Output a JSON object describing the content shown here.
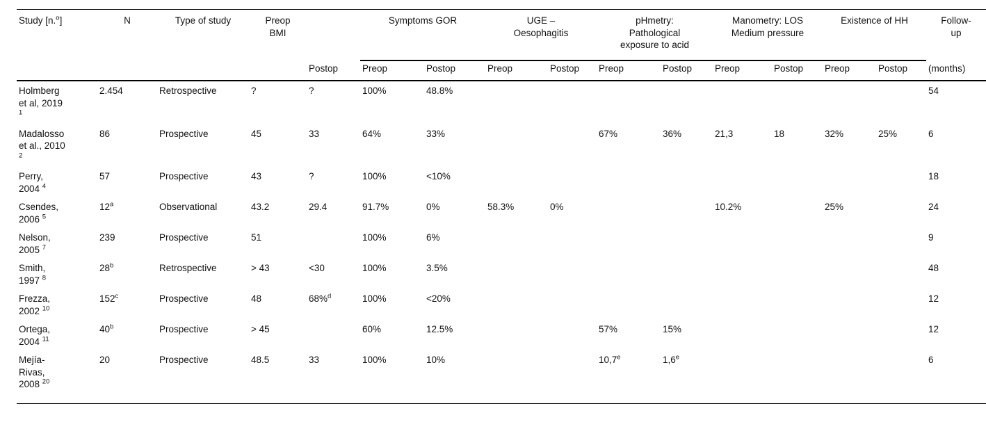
{
  "page": {
    "background": "#ffffff",
    "text_color": "#111111",
    "rule_color": "#000000"
  },
  "table": {
    "headers": {
      "study": "Study [n.^{o}]",
      "n": "N",
      "type_of_study": "Type of study",
      "preop_bmi": [
        "Preop",
        "BMI"
      ],
      "groups": [
        {
          "id": "symptoms-gor",
          "label": [
            "Symptoms GOR"
          ]
        },
        {
          "id": "uge-oesophagitis",
          "label": [
            "UGE –",
            "Oesophagitis"
          ]
        },
        {
          "id": "phmetry",
          "label": [
            "pHmetry:",
            "Pathological",
            "exposure to acid"
          ]
        },
        {
          "id": "manometry",
          "label": [
            "Manometry: LOS",
            "Medium pressure"
          ]
        },
        {
          "id": "existence-of-hh",
          "label": [
            "Existence of HH"
          ]
        }
      ],
      "followup": [
        "Follow-",
        "up"
      ],
      "sub": {
        "postop_bmi": "Postop",
        "preop": "Preop",
        "postop": "Postop",
        "months": "(months)"
      }
    },
    "rows": [
      {
        "study": [
          "Holmberg",
          "et al, 2019",
          "^{1}"
        ],
        "n": "2.454",
        "type": "Retrospective",
        "preop_bmi": "?",
        "postop_bmi": "?",
        "gor_pre": "100%",
        "gor_post": "48.8%",
        "uge_pre": "",
        "uge_post": "",
        "ph_pre": "",
        "ph_post": "",
        "mano_pre": "",
        "mano_post": "",
        "hh_pre": "",
        "hh_post": "",
        "followup": "54"
      },
      {
        "study": [
          "Madalosso",
          "et al., 2010",
          "^{2}"
        ],
        "n": "86",
        "type": "Prospective",
        "preop_bmi": "45",
        "postop_bmi": "33",
        "gor_pre": "64%",
        "gor_post": "33%",
        "uge_pre": "",
        "uge_post": "",
        "ph_pre": "67%",
        "ph_post": "36%",
        "mano_pre": "21,3",
        "mano_post": "18",
        "hh_pre": "32%",
        "hh_post": "25%",
        "followup": "6"
      },
      {
        "study": [
          "Perry,",
          "2004 ^{4}"
        ],
        "n": "57",
        "type": "Prospective",
        "preop_bmi": "43",
        "postop_bmi": "?",
        "gor_pre": "100%",
        "gor_post": "<10%",
        "uge_pre": "",
        "uge_post": "",
        "ph_pre": "",
        "ph_post": "",
        "mano_pre": "",
        "mano_post": "",
        "hh_pre": "",
        "hh_post": "",
        "followup": "18"
      },
      {
        "study": [
          "Csendes,",
          "2006 ^{5}"
        ],
        "n": "12^{a}",
        "type": "Observational",
        "preop_bmi": "43.2",
        "postop_bmi": "29.4",
        "gor_pre": "91.7%",
        "gor_post": "0%",
        "uge_pre": "58.3%",
        "uge_post": "0%",
        "ph_pre": "",
        "ph_post": "",
        "mano_pre": "10.2%",
        "mano_post": "",
        "hh_pre": "25%",
        "hh_post": "",
        "followup": "24"
      },
      {
        "study": [
          "Nelson,",
          "2005 ^{7}"
        ],
        "n": "239",
        "type": "Prospective",
        "preop_bmi": "51",
        "postop_bmi": "",
        "gor_pre": "100%",
        "gor_post": "6%",
        "uge_pre": "",
        "uge_post": "",
        "ph_pre": "",
        "ph_post": "",
        "mano_pre": "",
        "mano_post": "",
        "hh_pre": "",
        "hh_post": "",
        "followup": "9"
      },
      {
        "study": [
          "Smith,",
          "1997 ^{8}"
        ],
        "n": "28^{b}",
        "type": "Retrospective",
        "preop_bmi": "> 43",
        "postop_bmi": "<30",
        "gor_pre": "100%",
        "gor_post": "3.5%",
        "uge_pre": "",
        "uge_post": "",
        "ph_pre": "",
        "ph_post": "",
        "mano_pre": "",
        "mano_post": "",
        "hh_pre": "",
        "hh_post": "",
        "followup": "48"
      },
      {
        "study": [
          "Frezza,",
          "2002 ^{10}"
        ],
        "n": "152^{c}",
        "type": "Prospective",
        "preop_bmi": "48",
        "postop_bmi": "68%^{d}",
        "gor_pre": "100%",
        "gor_post": "<20%",
        "uge_pre": "",
        "uge_post": "",
        "ph_pre": "",
        "ph_post": "",
        "mano_pre": "",
        "mano_post": "",
        "hh_pre": "",
        "hh_post": "",
        "followup": "12"
      },
      {
        "study": [
          "Ortega,",
          "2004 ^{11}"
        ],
        "n": "40^{b}",
        "type": "Prospective",
        "preop_bmi": "> 45",
        "postop_bmi": "",
        "gor_pre": "60%",
        "gor_post": "12.5%",
        "uge_pre": "",
        "uge_post": "",
        "ph_pre": "57%",
        "ph_post": "15%",
        "mano_pre": "",
        "mano_post": "",
        "hh_pre": "",
        "hh_post": "",
        "followup": "12"
      },
      {
        "study": [
          "Mejía-",
          "Rivas,",
          "2008 ^{20}"
        ],
        "n": "20",
        "type": "Prospective",
        "preop_bmi": "48.5",
        "postop_bmi": "33",
        "gor_pre": "100%",
        "gor_post": "10%",
        "uge_pre": "",
        "uge_post": "",
        "ph_pre": "10,7^{e}",
        "ph_post": "1,6^{e}",
        "mano_pre": "",
        "mano_post": "",
        "hh_pre": "",
        "hh_post": "",
        "followup": "6"
      }
    ]
  }
}
